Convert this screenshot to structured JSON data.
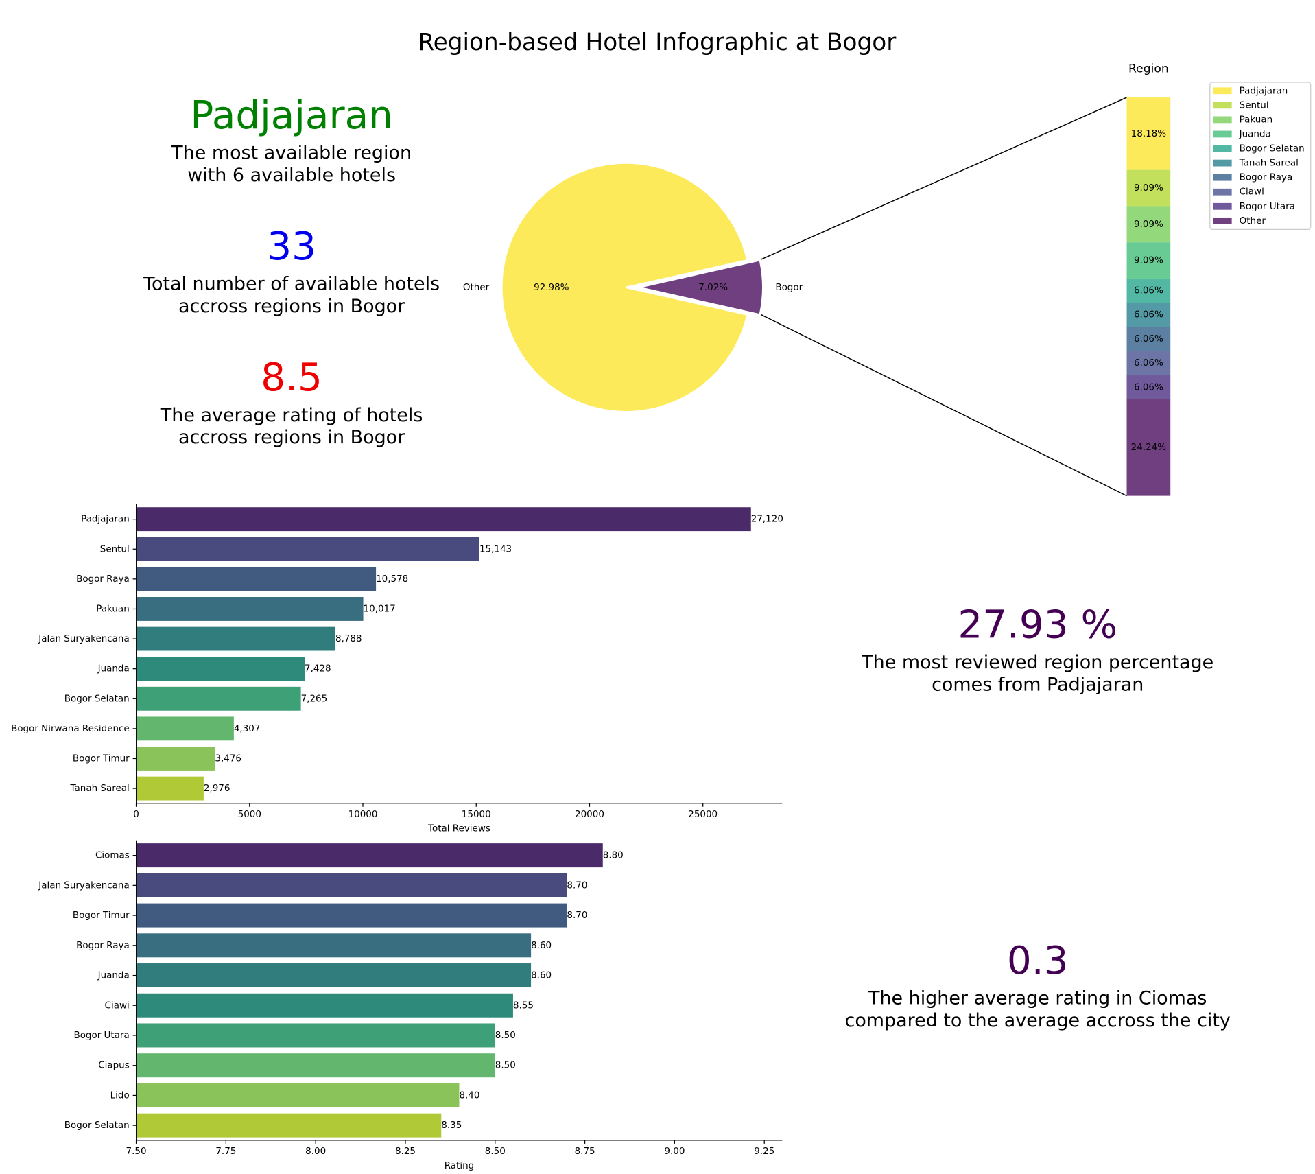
{
  "title": "Region-based Hotel Infographic at Bogor",
  "kpis": [
    {
      "value": "Padjajaran",
      "color": "#008000",
      "lines": [
        "The most available region",
        "with 6 available hotels"
      ]
    },
    {
      "value": "33",
      "color": "#0000ee",
      "lines": [
        "Total number of available hotels",
        "accross regions in Bogor"
      ]
    },
    {
      "value": "8.5",
      "color": "#ee0000",
      "lines": [
        "The average rating of hotels",
        "accross regions in Bogor"
      ]
    },
    {
      "value": "27.93 %",
      "color": "#440154",
      "lines": [
        "The most reviewed region percentage",
        "comes from Padjajaran"
      ]
    },
    {
      "value": "0.3",
      "color": "#440154",
      "lines": [
        "The higher average rating in Ciomas",
        "compared to the average accross the city"
      ]
    }
  ],
  "chart_data": [
    {
      "type": "pie",
      "categories": [
        "Other",
        "Bogor"
      ],
      "values": [
        92.98,
        7.02
      ],
      "value_labels": [
        "92.98%",
        "7.02%"
      ],
      "colors": [
        "#fcea5a",
        "#703f80"
      ]
    },
    {
      "type": "stacked_bar",
      "title": "Region",
      "categories": [
        "Padjajaran",
        "Sentul",
        "Pakuan",
        "Juanda",
        "Bogor Selatan",
        "Tanah Sareal",
        "Bogor Raya",
        "Ciawi",
        "Bogor Utara",
        "Other"
      ],
      "values": [
        18.18,
        9.09,
        9.09,
        9.09,
        6.06,
        6.06,
        6.06,
        6.06,
        6.06,
        24.24
      ],
      "value_labels": [
        "18.18%",
        "9.09%",
        "9.09%",
        "9.09%",
        "6.06%",
        "6.06%",
        "6.06%",
        "6.06%",
        "6.06%",
        "24.24%"
      ],
      "colors": [
        "#fcea5a",
        "#c3e05c",
        "#93d87a",
        "#68cb94",
        "#52b8a4",
        "#5499a6",
        "#5b80a2",
        "#6d75a6",
        "#705a9b",
        "#703f80"
      ],
      "legend": "upper right"
    },
    {
      "type": "hbar",
      "xlabel": "Total Reviews",
      "categories": [
        "Padjajaran",
        "Sentul",
        "Bogor Raya",
        "Pakuan",
        "Jalan Suryakencana",
        "Juanda",
        "Bogor Selatan",
        "Bogor Nirwana Residence",
        "Bogor Timur",
        "Tanah Sareal"
      ],
      "values": [
        27120,
        15143,
        10578,
        10017,
        8788,
        7428,
        7265,
        4307,
        3476,
        2976
      ],
      "value_labels": [
        "27,120",
        "15,143",
        "10,578",
        "10,017",
        "8,788",
        "7,428",
        "7,265",
        "4,307",
        "3,476",
        "2,976"
      ],
      "colors": [
        "#4a2a68",
        "#494a7d",
        "#405a80",
        "#386e80",
        "#317c7d",
        "#2e8b7b",
        "#3da076",
        "#62b66d",
        "#89c35a",
        "#b0c937"
      ],
      "xlim": [
        0,
        28500
      ],
      "xticks": [
        0,
        5000,
        10000,
        15000,
        20000,
        25000
      ]
    },
    {
      "type": "hbar",
      "xlabel": "Rating",
      "categories": [
        "Ciomas",
        "Jalan Suryakencana",
        "Bogor Timur",
        "Bogor Raya",
        "Juanda",
        "Ciawi",
        "Bogor Utara",
        "Ciapus",
        "Lido",
        "Bogor Selatan"
      ],
      "values": [
        8.8,
        8.7,
        8.7,
        8.6,
        8.6,
        8.55,
        8.5,
        8.5,
        8.4,
        8.35
      ],
      "value_labels": [
        "8.80",
        "8.70",
        "8.70",
        "8.60",
        "8.60",
        "8.55",
        "8.50",
        "8.50",
        "8.40",
        "8.35"
      ],
      "colors": [
        "#4a2a68",
        "#494a7d",
        "#405a80",
        "#386e80",
        "#317c7d",
        "#2e8b7b",
        "#3da076",
        "#62b66d",
        "#89c35a",
        "#b0c937"
      ],
      "xlim": [
        7.5,
        9.3
      ],
      "xticks": [
        {
          "value": 7.5,
          "label": "7.50"
        },
        {
          "value": 7.75,
          "label": "7.75"
        },
        {
          "value": 8,
          "label": "8.00"
        },
        {
          "value": 8.25,
          "label": "8.25"
        },
        {
          "value": 8.5,
          "label": "8.50"
        },
        {
          "value": 8.75,
          "label": "8.75"
        },
        {
          "value": 9,
          "label": "9.00"
        },
        {
          "value": 9.25,
          "label": "9.25"
        }
      ]
    }
  ]
}
